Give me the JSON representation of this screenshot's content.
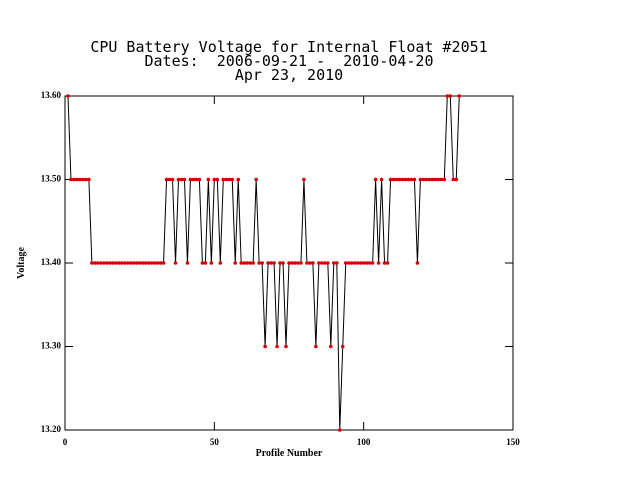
{
  "chart_data": {
    "type": "line",
    "title": "CPU Battery Voltage for Internal Float #2051",
    "subtitle": "Dates:  2006-09-21 -  2010-04-20",
    "date_line": "Apr 23, 2010",
    "x_label": "Profile Number",
    "y_label": "Voltage",
    "x": [
      1,
      2,
      3,
      4,
      5,
      6,
      7,
      8,
      9,
      10,
      11,
      12,
      13,
      14,
      15,
      16,
      17,
      18,
      19,
      20,
      21,
      22,
      23,
      24,
      25,
      26,
      27,
      28,
      29,
      30,
      31,
      32,
      33,
      34,
      35,
      36,
      37,
      38,
      39,
      40,
      41,
      42,
      43,
      44,
      45,
      46,
      47,
      48,
      49,
      50,
      51,
      52,
      53,
      54,
      55,
      56,
      57,
      58,
      59,
      60,
      61,
      62,
      63,
      64,
      65,
      66,
      67,
      68,
      69,
      70,
      71,
      72,
      73,
      74,
      75,
      76,
      77,
      78,
      79,
      80,
      81,
      82,
      83,
      84,
      85,
      86,
      87,
      88,
      89,
      90,
      91,
      92,
      93,
      94,
      95,
      96,
      97,
      98,
      99,
      100,
      101,
      102,
      103,
      104,
      105,
      106,
      107,
      108,
      109,
      110,
      111,
      112,
      113,
      114,
      115,
      116,
      117,
      118,
      119,
      120,
      121,
      122,
      123,
      124,
      125,
      126,
      127,
      128,
      129,
      130,
      131,
      132
    ],
    "series": [
      {
        "color": "#d40000",
        "line_color": "#000000",
        "values": [
          13.6,
          13.5,
          13.5,
          13.5,
          13.5,
          13.5,
          13.5,
          13.5,
          13.4,
          13.4,
          13.4,
          13.4,
          13.4,
          13.4,
          13.4,
          13.4,
          13.4,
          13.4,
          13.4,
          13.4,
          13.4,
          13.4,
          13.4,
          13.4,
          13.4,
          13.4,
          13.4,
          13.4,
          13.4,
          13.4,
          13.4,
          13.4,
          13.4,
          13.5,
          13.5,
          13.5,
          13.4,
          13.5,
          13.5,
          13.5,
          13.4,
          13.5,
          13.5,
          13.5,
          13.5,
          13.4,
          13.4,
          13.5,
          13.4,
          13.5,
          13.5,
          13.4,
          13.5,
          13.5,
          13.5,
          13.5,
          13.4,
          13.5,
          13.4,
          13.4,
          13.4,
          13.4,
          13.4,
          13.5,
          13.4,
          13.4,
          13.3,
          13.4,
          13.4,
          13.4,
          13.3,
          13.4,
          13.4,
          13.3,
          13.4,
          13.4,
          13.4,
          13.4,
          13.4,
          13.5,
          13.4,
          13.4,
          13.4,
          13.3,
          13.4,
          13.4,
          13.4,
          13.4,
          13.3,
          13.4,
          13.4,
          13.2,
          13.3,
          13.4,
          13.4,
          13.4,
          13.4,
          13.4,
          13.4,
          13.4,
          13.4,
          13.4,
          13.4,
          13.5,
          13.4,
          13.5,
          13.4,
          13.4,
          13.5,
          13.5,
          13.5,
          13.5,
          13.5,
          13.5,
          13.5,
          13.5,
          13.5,
          13.4,
          13.5,
          13.5,
          13.5,
          13.5,
          13.5,
          13.5,
          13.5,
          13.5,
          13.5,
          13.6,
          13.6,
          13.5,
          13.5,
          13.6
        ]
      }
    ],
    "xlim": [
      0,
      150
    ],
    "xticks": [
      0,
      50,
      100,
      150
    ],
    "ylim": [
      13.2,
      13.6
    ],
    "yticks": [
      {
        "value": 13.2,
        "label": "13.20"
      },
      {
        "value": 13.3,
        "label": "13.30"
      },
      {
        "value": 13.4,
        "label": "13.40"
      },
      {
        "value": 13.5,
        "label": "13.50"
      },
      {
        "value": 13.6,
        "label": "13.60"
      }
    ],
    "grid": false
  }
}
